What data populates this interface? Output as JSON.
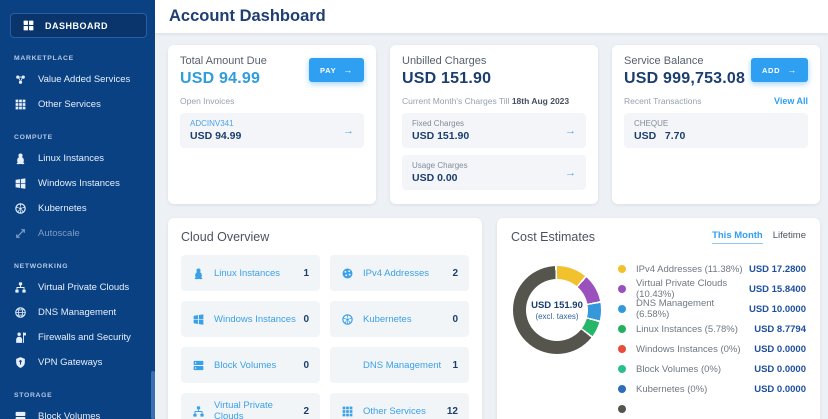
{
  "sidebar": {
    "active_item": {
      "label": "DASHBOARD",
      "icon": "dashboard-icon"
    },
    "sections": [
      {
        "label": "MARKETPLACE",
        "items": [
          {
            "label": "Value Added Services",
            "icon": "nodes-icon"
          },
          {
            "label": "Other Services",
            "icon": "grid9-icon"
          }
        ]
      },
      {
        "label": "COMPUTE",
        "items": [
          {
            "label": "Linux Instances",
            "icon": "linux-icon"
          },
          {
            "label": "Windows Instances",
            "icon": "windows-icon"
          },
          {
            "label": "Kubernetes",
            "icon": "kubernetes-icon"
          },
          {
            "label": "Autoscale",
            "icon": "autoscale-icon",
            "disabled": true
          }
        ]
      },
      {
        "label": "NETWORKING",
        "items": [
          {
            "label": "Virtual Private Clouds",
            "icon": "vpc-icon"
          },
          {
            "label": "DNS Management",
            "icon": "globe-icon"
          },
          {
            "label": "Firewalls and Security",
            "icon": "firewall-icon"
          },
          {
            "label": "VPN Gateways",
            "icon": "vpn-icon"
          }
        ]
      },
      {
        "label": "STORAGE",
        "items": [
          {
            "label": "Block Volumes",
            "icon": "volumes-icon"
          }
        ]
      }
    ]
  },
  "header": {
    "title": "Account Dashboard"
  },
  "cards": {
    "total_due": {
      "title": "Total Amount Due",
      "amount": "USD 94.99",
      "button_label": "PAY",
      "button_arrow": "→",
      "section_label": "Open Invoices",
      "invoice": {
        "code": "ADCINV341",
        "amount": "USD 94.99",
        "arrow": "→"
      }
    },
    "unbilled": {
      "title": "Unbilled Charges",
      "amount": "USD 151.90",
      "caption_prefix": "Current Month's Charges Till ",
      "caption_bold": "18th Aug 2023",
      "items": [
        {
          "label": "Fixed Charges",
          "amount": "USD 151.90",
          "arrow": "→"
        },
        {
          "label": "Usage Charges",
          "amount": "USD 0.00",
          "arrow": "→"
        }
      ]
    },
    "balance": {
      "title": "Service Balance",
      "amount": "USD 999,753.08",
      "button_label": "ADD",
      "button_arrow": "→",
      "section_label": "Recent Transactions",
      "link_label": "View All",
      "transaction": {
        "label": "CHEQUE",
        "amount": "USD   7.70"
      }
    }
  },
  "cloud_overview": {
    "title": "Cloud Overview",
    "items": [
      {
        "label": "Linux Instances",
        "value": "1",
        "icon": "linux-icon"
      },
      {
        "label": "IPv4 Addresses",
        "value": "2",
        "icon": "ipv4-icon"
      },
      {
        "label": "Windows Instances",
        "value": "0",
        "icon": "windows-icon"
      },
      {
        "label": "Kubernetes",
        "value": "0",
        "icon": "kubernetes-icon"
      },
      {
        "label": "Block Volumes",
        "value": "0",
        "icon": "volumes-icon"
      },
      {
        "label": "DNS Management",
        "value": "1",
        "icon": "none-icon"
      },
      {
        "label": "Virtual Private Clouds",
        "value": "2",
        "icon": "vpc-icon"
      },
      {
        "label": "Other Services",
        "value": "12",
        "icon": "grid9-icon"
      }
    ]
  },
  "cost_estimates": {
    "title": "Cost Estimates",
    "tabs": [
      {
        "label": "This Month",
        "active": true
      },
      {
        "label": "Lifetime",
        "active": false
      }
    ],
    "center_amount": "USD 151.90",
    "center_note": "(excl. taxes)",
    "chart_data": {
      "type": "pie",
      "title": "Cost Estimates - This Month",
      "center_total": "USD 151.90 (excl. taxes)",
      "segments": [
        {
          "name": "IPv4 Addresses",
          "pct": 11.38,
          "color": "#f2c12e"
        },
        {
          "name": "Virtual Private Clouds",
          "pct": 10.43,
          "color": "#9b51bc"
        },
        {
          "name": "DNS Management",
          "pct": 6.58,
          "color": "#3598db"
        },
        {
          "name": "Linux Instances",
          "pct": 5.78,
          "color": "#27b567"
        },
        {
          "name": "Remainder",
          "pct": 65.83,
          "color": "#55544d"
        }
      ]
    },
    "legend": [
      {
        "label": "IPv4 Addresses (11.38%)",
        "value": "USD 17.2800",
        "color": "#f2c12e"
      },
      {
        "label": "Virtual Private Clouds (10.43%)",
        "value": "USD 15.8400",
        "color": "#9b51bc"
      },
      {
        "label": "DNS Management (6.58%)",
        "value": "USD 10.0000",
        "color": "#3598db"
      },
      {
        "label": "Linux Instances (5.78%)",
        "value": "USD 8.7794",
        "color": "#27ae60"
      },
      {
        "label": "Windows Instances (0%)",
        "value": "USD 0.0000",
        "color": "#e74c3c"
      },
      {
        "label": "Block Volumes (0%)",
        "value": "USD 0.0000",
        "color": "#2abf8e"
      },
      {
        "label": "Kubernetes (0%)",
        "value": "USD 0.0000",
        "color": "#2d6cbf"
      },
      {
        "label": "",
        "value": "",
        "color": "#55544d",
        "partial": true
      }
    ]
  }
}
